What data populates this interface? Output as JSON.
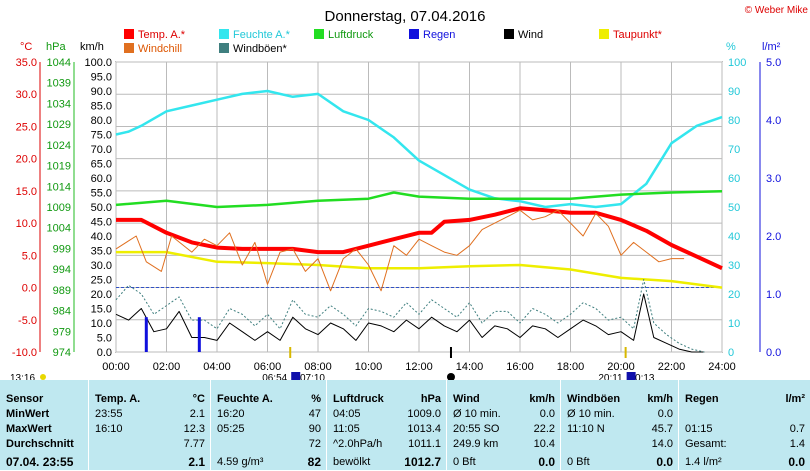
{
  "header": {
    "title": "Donnerstag, 07.04.2016",
    "copyright": "© Weber Mike"
  },
  "legend": [
    {
      "label": "Temp. A.*",
      "color": "#ff0000"
    },
    {
      "label": "Feuchte A.*",
      "color": "#33e6ee"
    },
    {
      "label": "Luftdruck",
      "color": "#22dd22"
    },
    {
      "label": "Regen",
      "color": "#1010dd"
    },
    {
      "label": "Wind",
      "color": "#000000"
    },
    {
      "label": "Taupunkt*",
      "color": "#eeee00"
    },
    {
      "label": "Windchill",
      "color": "#e07020"
    },
    {
      "label": "Windböen*",
      "color": "#3f7f7f"
    }
  ],
  "axis_units": {
    "temp": "°C",
    "pressure": "hPa",
    "wind": "km/h",
    "humidity": "%",
    "rain": "l/m²"
  },
  "axis_ticks": {
    "temp": [
      "35.0",
      "30.0",
      "25.0",
      "20.0",
      "15.0",
      "10.0",
      "5.0",
      "0.0",
      "-5.0",
      "-10.0"
    ],
    "pressure": [
      "1044",
      "1039",
      "1034",
      "1029",
      "1024",
      "1019",
      "1014",
      "1009",
      "1004",
      "999",
      "994",
      "989",
      "984",
      "979",
      "974"
    ],
    "wind": [
      "100.0",
      "95.0",
      "90.0",
      "85.0",
      "80.0",
      "75.0",
      "70.0",
      "65.0",
      "60.0",
      "55.0",
      "50.0",
      "45.0",
      "40.0",
      "35.0",
      "30.0",
      "25.0",
      "20.0",
      "15.0",
      "10.0",
      "5.0",
      "0.0"
    ],
    "humidity": [
      "100",
      "90",
      "80",
      "70",
      "60",
      "50",
      "40",
      "30",
      "20",
      "10",
      "0"
    ],
    "rain": [
      "5.0",
      "4.0",
      "3.0",
      "2.0",
      "1.0",
      "0.0"
    ],
    "time": [
      "00:00",
      "02:00",
      "04:00",
      "06:00",
      "08:00",
      "10:00",
      "12:00",
      "14:00",
      "16:00",
      "18:00",
      "20:00",
      "22:00",
      "24:00"
    ]
  },
  "markers": {
    "timestamp": "13:16",
    "sunrise": "06:54",
    "sunrise_end": "07:10",
    "sunset": "20:11",
    "sunset_end": "20:13"
  },
  "chart_data": {
    "type": "line",
    "x_label": "",
    "xlim": [
      0,
      24
    ],
    "series": [
      {
        "name": "Temp. A.*",
        "axis": "temp",
        "color": "#ff0000",
        "x": [
          0,
          1,
          2,
          3,
          4,
          5,
          6,
          7,
          8,
          9,
          10,
          11,
          12,
          12.5,
          13,
          14,
          15,
          16,
          17,
          18,
          19,
          20,
          21,
          22,
          23,
          24
        ],
        "values": [
          10.5,
          10.5,
          8.5,
          7.0,
          6.2,
          6.0,
          6.0,
          6.0,
          5.5,
          5.5,
          6.5,
          7.5,
          8.5,
          8.5,
          10.2,
          10.5,
          11.3,
          12.3,
          12.0,
          11.6,
          11.6,
          10.5,
          8.8,
          6.6,
          4.8,
          3.0
        ]
      },
      {
        "name": "Feuchte A.*",
        "axis": "humidity",
        "color": "#33e6ee",
        "x": [
          0,
          0.5,
          1,
          2,
          3,
          4,
          5,
          6,
          7,
          8,
          9,
          10,
          11,
          12,
          13,
          14,
          15,
          16,
          17,
          18,
          19,
          20,
          21,
          22,
          23,
          24
        ],
        "values": [
          75,
          76,
          78,
          83,
          85,
          87,
          89,
          90,
          88,
          89,
          83,
          80,
          74,
          66,
          61,
          56,
          53,
          52,
          50,
          51,
          50,
          51,
          58,
          72,
          78,
          81
        ]
      },
      {
        "name": "Luftdruck",
        "axis": "pressure",
        "color": "#22dd22",
        "x": [
          0,
          2,
          4,
          6,
          8,
          10,
          11,
          12,
          14,
          16,
          18,
          20,
          22,
          24
        ],
        "values": [
          1009.5,
          1010.5,
          1009.0,
          1009.5,
          1010.5,
          1011.0,
          1012.5,
          1011.5,
          1011.0,
          1011.0,
          1011.0,
          1012.0,
          1012.5,
          1012.8
        ]
      },
      {
        "name": "Taupunkt*",
        "axis": "temp",
        "color": "#eeee00",
        "x": [
          0,
          2,
          4,
          6,
          8,
          10,
          12,
          14,
          16,
          18,
          20,
          22,
          24
        ],
        "values": [
          5.5,
          5.5,
          4.0,
          3.8,
          3.5,
          3.0,
          3.0,
          3.3,
          3.5,
          2.8,
          1.5,
          1.0,
          0.0
        ]
      },
      {
        "name": "Windchill",
        "axis": "temp",
        "color": "#e07020",
        "x": [
          0,
          0.8,
          1.2,
          1.8,
          2.2,
          3,
          3.5,
          4,
          4.5,
          5,
          5.5,
          6,
          6.5,
          7,
          7.5,
          8,
          8.5,
          9,
          9.5,
          10,
          10.5,
          11,
          11.5,
          12,
          12.5,
          13,
          13.5,
          14,
          14.5,
          15,
          15.5,
          16,
          16.5,
          17,
          17.5,
          18,
          18.5,
          19,
          19.5,
          20,
          20.5,
          21,
          21.5,
          22,
          22.5
        ],
        "values": [
          6.0,
          8.0,
          4.0,
          2.5,
          8.0,
          5.5,
          7.5,
          6.5,
          8.5,
          3.5,
          7.0,
          0.5,
          5.5,
          6.0,
          2.5,
          4.5,
          -0.5,
          4.5,
          6.0,
          3.5,
          -0.5,
          6.5,
          5.0,
          7.5,
          6.5,
          5.5,
          5.0,
          6.5,
          9.0,
          10.0,
          11.0,
          12.0,
          10.5,
          11.0,
          12.0,
          10.0,
          8.0,
          11.5,
          9.5,
          5.0,
          7.0,
          5.5,
          4.0,
          4.5,
          4.5
        ]
      },
      {
        "name": "Wind",
        "axis": "wind",
        "color": "#000000",
        "x": [
          0,
          0.5,
          1,
          1.5,
          2,
          2.5,
          3,
          3.5,
          4,
          4.5,
          5,
          5.5,
          6,
          6.5,
          7,
          7.5,
          8,
          8.5,
          9,
          9.5,
          10,
          10.5,
          11,
          11.5,
          12,
          12.5,
          13,
          13.5,
          14,
          14.5,
          15,
          15.5,
          16,
          16.5,
          17,
          17.5,
          18,
          18.5,
          19,
          19.5,
          20,
          20.5,
          20.9,
          21.3,
          21.8,
          22.3,
          22.8,
          23.3
        ],
        "values": [
          13,
          11,
          15,
          7,
          8,
          14,
          5,
          5,
          4,
          10,
          7,
          4,
          7,
          4,
          12,
          8,
          6,
          10,
          8,
          4,
          10,
          9,
          7,
          11,
          8,
          12,
          9,
          7,
          11,
          5,
          9,
          8,
          5,
          9,
          8,
          5,
          8,
          11,
          9,
          6,
          7,
          4,
          20,
          5,
          3,
          1,
          0,
          0
        ]
      },
      {
        "name": "Windböen*",
        "axis": "wind",
        "color": "#3f7f7f",
        "x": [
          0,
          0.5,
          1,
          1.5,
          2,
          2.5,
          3,
          3.5,
          4,
          4.5,
          5,
          5.5,
          6,
          6.5,
          7,
          7.5,
          8,
          8.5,
          9,
          9.5,
          10,
          10.5,
          11,
          11.5,
          12,
          12.5,
          13,
          13.5,
          14,
          14.5,
          15,
          15.5,
          16,
          16.5,
          17,
          17.5,
          18,
          18.5,
          19,
          19.5,
          20,
          20.5,
          20.9,
          21.3,
          21.8,
          22.3,
          22.8,
          23.3
        ],
        "values": [
          18,
          23,
          20,
          13,
          16,
          19,
          11,
          11,
          8,
          15,
          13,
          9,
          13,
          8,
          18,
          13,
          12,
          16,
          13,
          9,
          15,
          14,
          12,
          17,
          13,
          18,
          15,
          12,
          17,
          10,
          14,
          14,
          10,
          15,
          13,
          10,
          13,
          17,
          15,
          11,
          12,
          8,
          25,
          10,
          6,
          3,
          1,
          0
        ]
      },
      {
        "name": "Regen",
        "axis": "rain",
        "color": "#1010dd",
        "type": "bar",
        "x": [
          1.2,
          3.3
        ],
        "values": [
          0.6,
          0.6
        ]
      }
    ]
  },
  "stats": {
    "columns": [
      {
        "header": "Sensor",
        "unit": "",
        "rows": [
          "MinWert",
          "MaxWert",
          "Durchschnitt"
        ],
        "final": "07.04. 23:55"
      },
      {
        "header": "Temp. A.",
        "unit": "°C",
        "rows": [
          [
            "23:55",
            "2.1"
          ],
          [
            "16:10",
            "12.3"
          ],
          [
            "",
            "7.77"
          ]
        ],
        "final": "2.1"
      },
      {
        "header": "Feuchte A.",
        "unit": "%",
        "rows": [
          [
            "16:20",
            "47"
          ],
          [
            "05:25",
            "90"
          ],
          [
            "",
            "72"
          ]
        ],
        "final_left": "4.59 g/m³",
        "final": "82"
      },
      {
        "header": "Luftdruck",
        "unit": "hPa",
        "rows": [
          [
            "04:05",
            "1009.0"
          ],
          [
            "11:05",
            "1013.4"
          ],
          [
            "^2.0hPa/h",
            "1011.1"
          ]
        ],
        "final_left": "bewölkt",
        "final": "1012.7"
      },
      {
        "header": "Wind",
        "unit": "km/h",
        "rows": [
          [
            "Ø 10 min.",
            "0.0"
          ],
          [
            "20:55   SO",
            "22.2"
          ],
          [
            "249.9 km",
            "10.4"
          ]
        ],
        "final_left": "0 Bft",
        "final": "0.0"
      },
      {
        "header": "Windböen",
        "unit": "km/h",
        "rows": [
          [
            "Ø 10 min.",
            "0.0"
          ],
          [
            "11:10   N",
            "45.7"
          ],
          [
            "",
            "14.0"
          ]
        ],
        "final_left": "0 Bft",
        "final": "0.0"
      },
      {
        "header": "Regen",
        "unit": "l/m²",
        "rows": [
          [
            "",
            ""
          ],
          [
            "01:15",
            "0.7"
          ],
          [
            "Gesamt:",
            "1.4"
          ]
        ],
        "final_left": "1.4 l/m²",
        "final": "0.0"
      }
    ]
  }
}
